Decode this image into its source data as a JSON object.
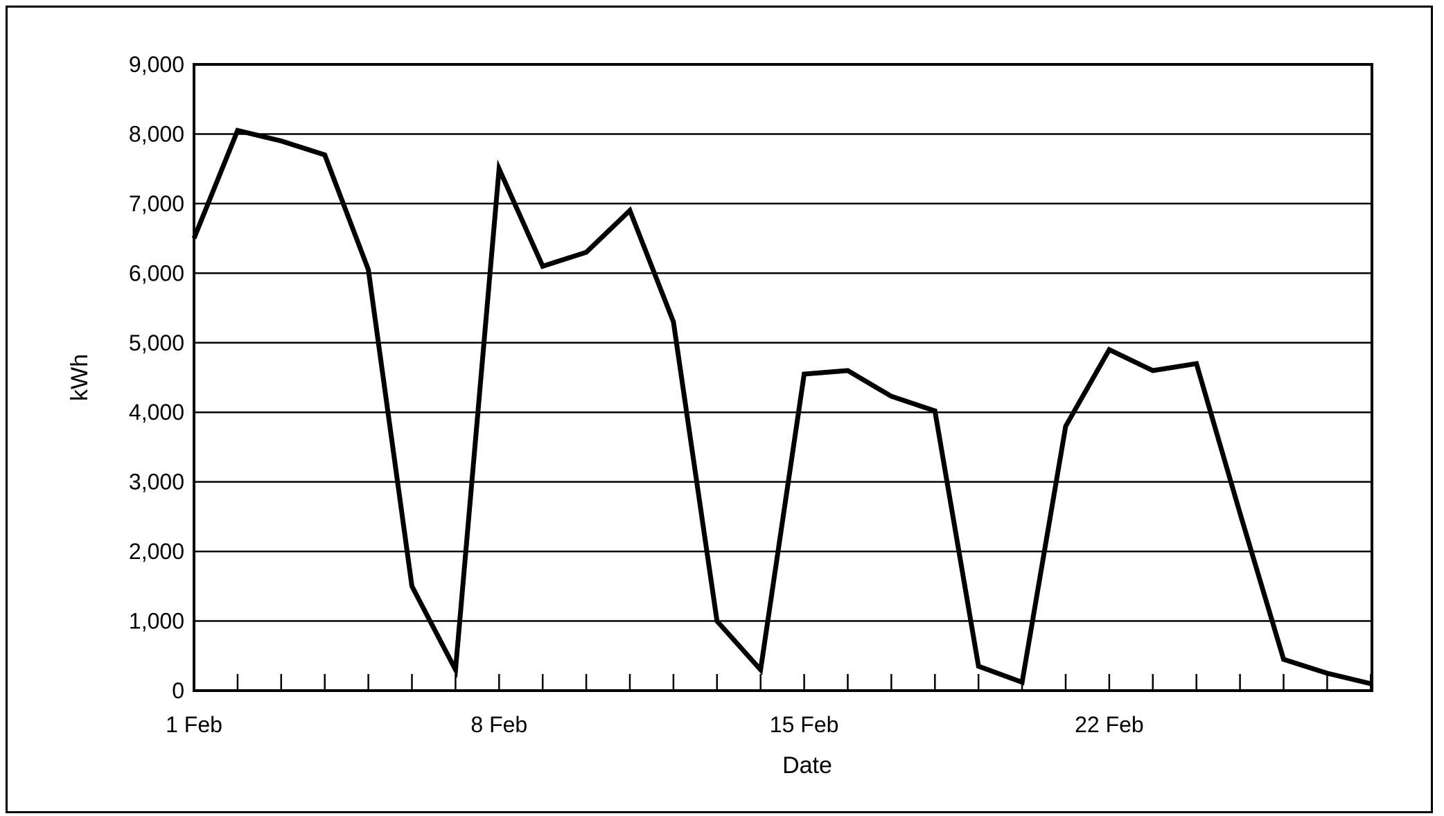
{
  "chart_data": {
    "type": "line",
    "title": "",
    "xlabel": "Date",
    "ylabel": "kWh",
    "x_tick_labels": [
      {
        "day": 1,
        "label": "1 Feb"
      },
      {
        "day": 8,
        "label": "8 Feb"
      },
      {
        "day": 15,
        "label": "15 Feb"
      },
      {
        "day": 22,
        "label": "22 Feb"
      }
    ],
    "y_ticks": [
      0,
      1000,
      2000,
      3000,
      4000,
      5000,
      6000,
      7000,
      8000,
      9000
    ],
    "y_tick_labels": [
      "0",
      "1,000",
      "2,000",
      "3,000",
      "4,000",
      "5,000",
      "6,000",
      "7,000",
      "8,000",
      "9,000"
    ],
    "ylim": [
      0,
      9000
    ],
    "xlim": [
      1,
      28
    ],
    "grid": "horizontal",
    "series": [
      {
        "x": [
          1,
          2,
          3,
          4,
          5,
          6,
          7,
          8,
          9,
          10,
          11,
          12,
          13,
          14,
          15,
          16,
          17,
          18,
          19,
          20,
          21,
          22,
          23,
          24,
          25,
          26,
          27,
          28
        ],
        "values": [
          6500,
          8050,
          7900,
          7700,
          6050,
          1500,
          300,
          7500,
          6100,
          6300,
          6900,
          5300,
          1000,
          300,
          4550,
          4600,
          4230,
          4020,
          350,
          120,
          3800,
          4900,
          4600,
          4700,
          2550,
          450,
          250,
          100
        ]
      }
    ]
  }
}
